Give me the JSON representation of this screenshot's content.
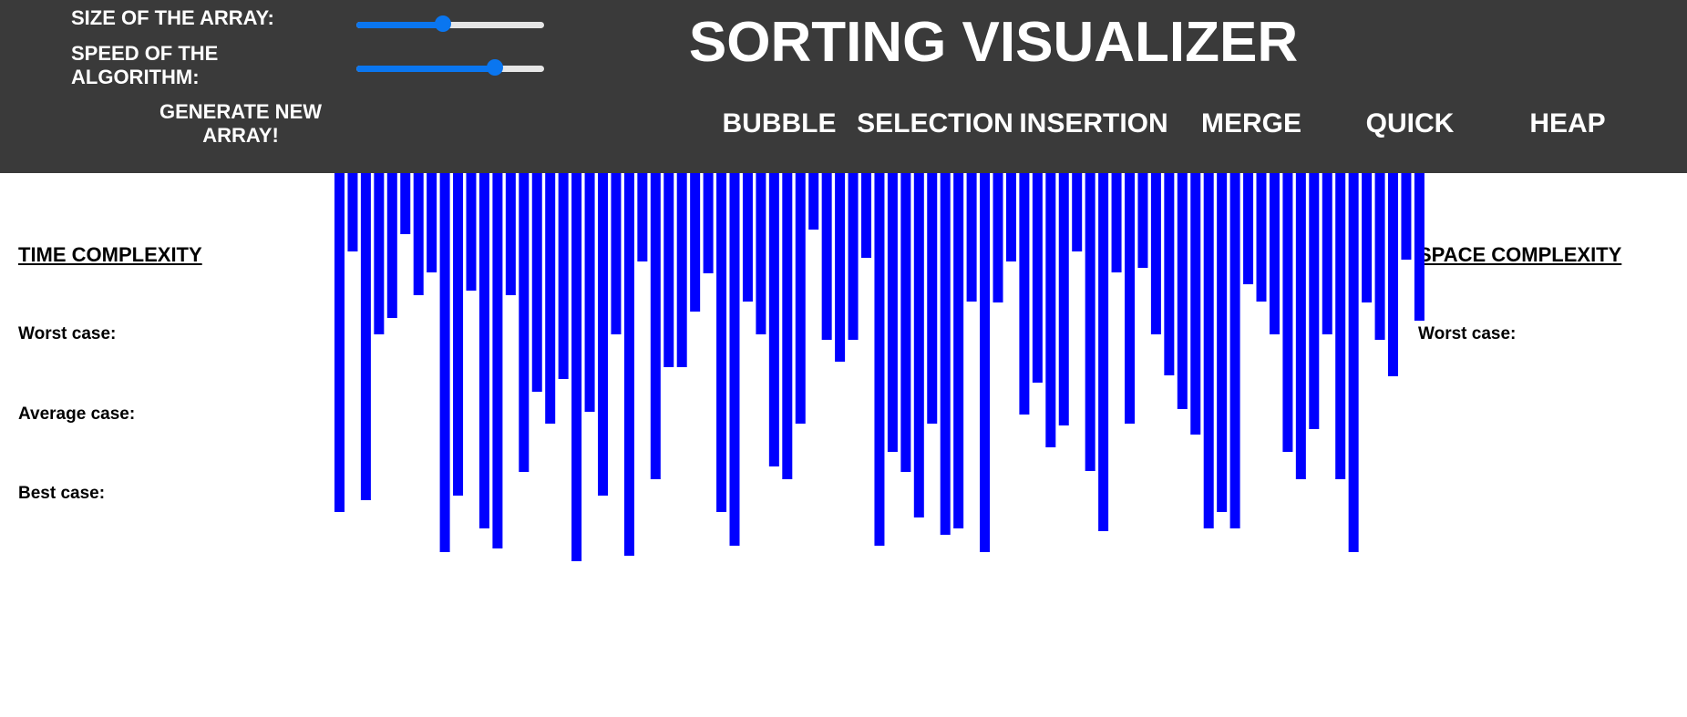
{
  "header": {
    "size_label": "SIZE OF THE ARRAY:",
    "speed_label_line1": "SPEED OF THE",
    "speed_label_line2": "ALGORITHM:",
    "size_value": 0.46,
    "speed_value": 0.74,
    "generate_line1": "GENERATE NEW",
    "generate_line2": "ARRAY!",
    "title": "SORTING VISUALIZER",
    "algorithms": [
      "BUBBLE",
      "SELECTION",
      "INSERTION",
      "MERGE",
      "QUICK",
      "HEAP"
    ]
  },
  "time_complexity": {
    "title": "TIME COMPLEXITY",
    "worst": "Worst case:",
    "average": "Average case:",
    "best": "Best case:"
  },
  "space_complexity": {
    "title": "SPACE COMPLEXITY",
    "worst": "Worst case:"
  },
  "colors": {
    "bar": "#0000ff",
    "header": "#3a3a3a",
    "slider": "#0a76f0"
  },
  "array_values": [
    372,
    86,
    359,
    177,
    159,
    67,
    134,
    109,
    416,
    354,
    129,
    390,
    412,
    134,
    328,
    240,
    275,
    226,
    426,
    262,
    354,
    177,
    420,
    97,
    336,
    213,
    213,
    152,
    110,
    372,
    409,
    141,
    177,
    322,
    336,
    275,
    62,
    183,
    207,
    183,
    93,
    409,
    306,
    328,
    378,
    275,
    397,
    390,
    141,
    416,
    142,
    97,
    265,
    230,
    301,
    277,
    86,
    327,
    393,
    109,
    275,
    104,
    177,
    222,
    259,
    287,
    390,
    372,
    390,
    122,
    141,
    177,
    306,
    336,
    281,
    177,
    336,
    416,
    142,
    183,
    223,
    95,
    162
  ]
}
